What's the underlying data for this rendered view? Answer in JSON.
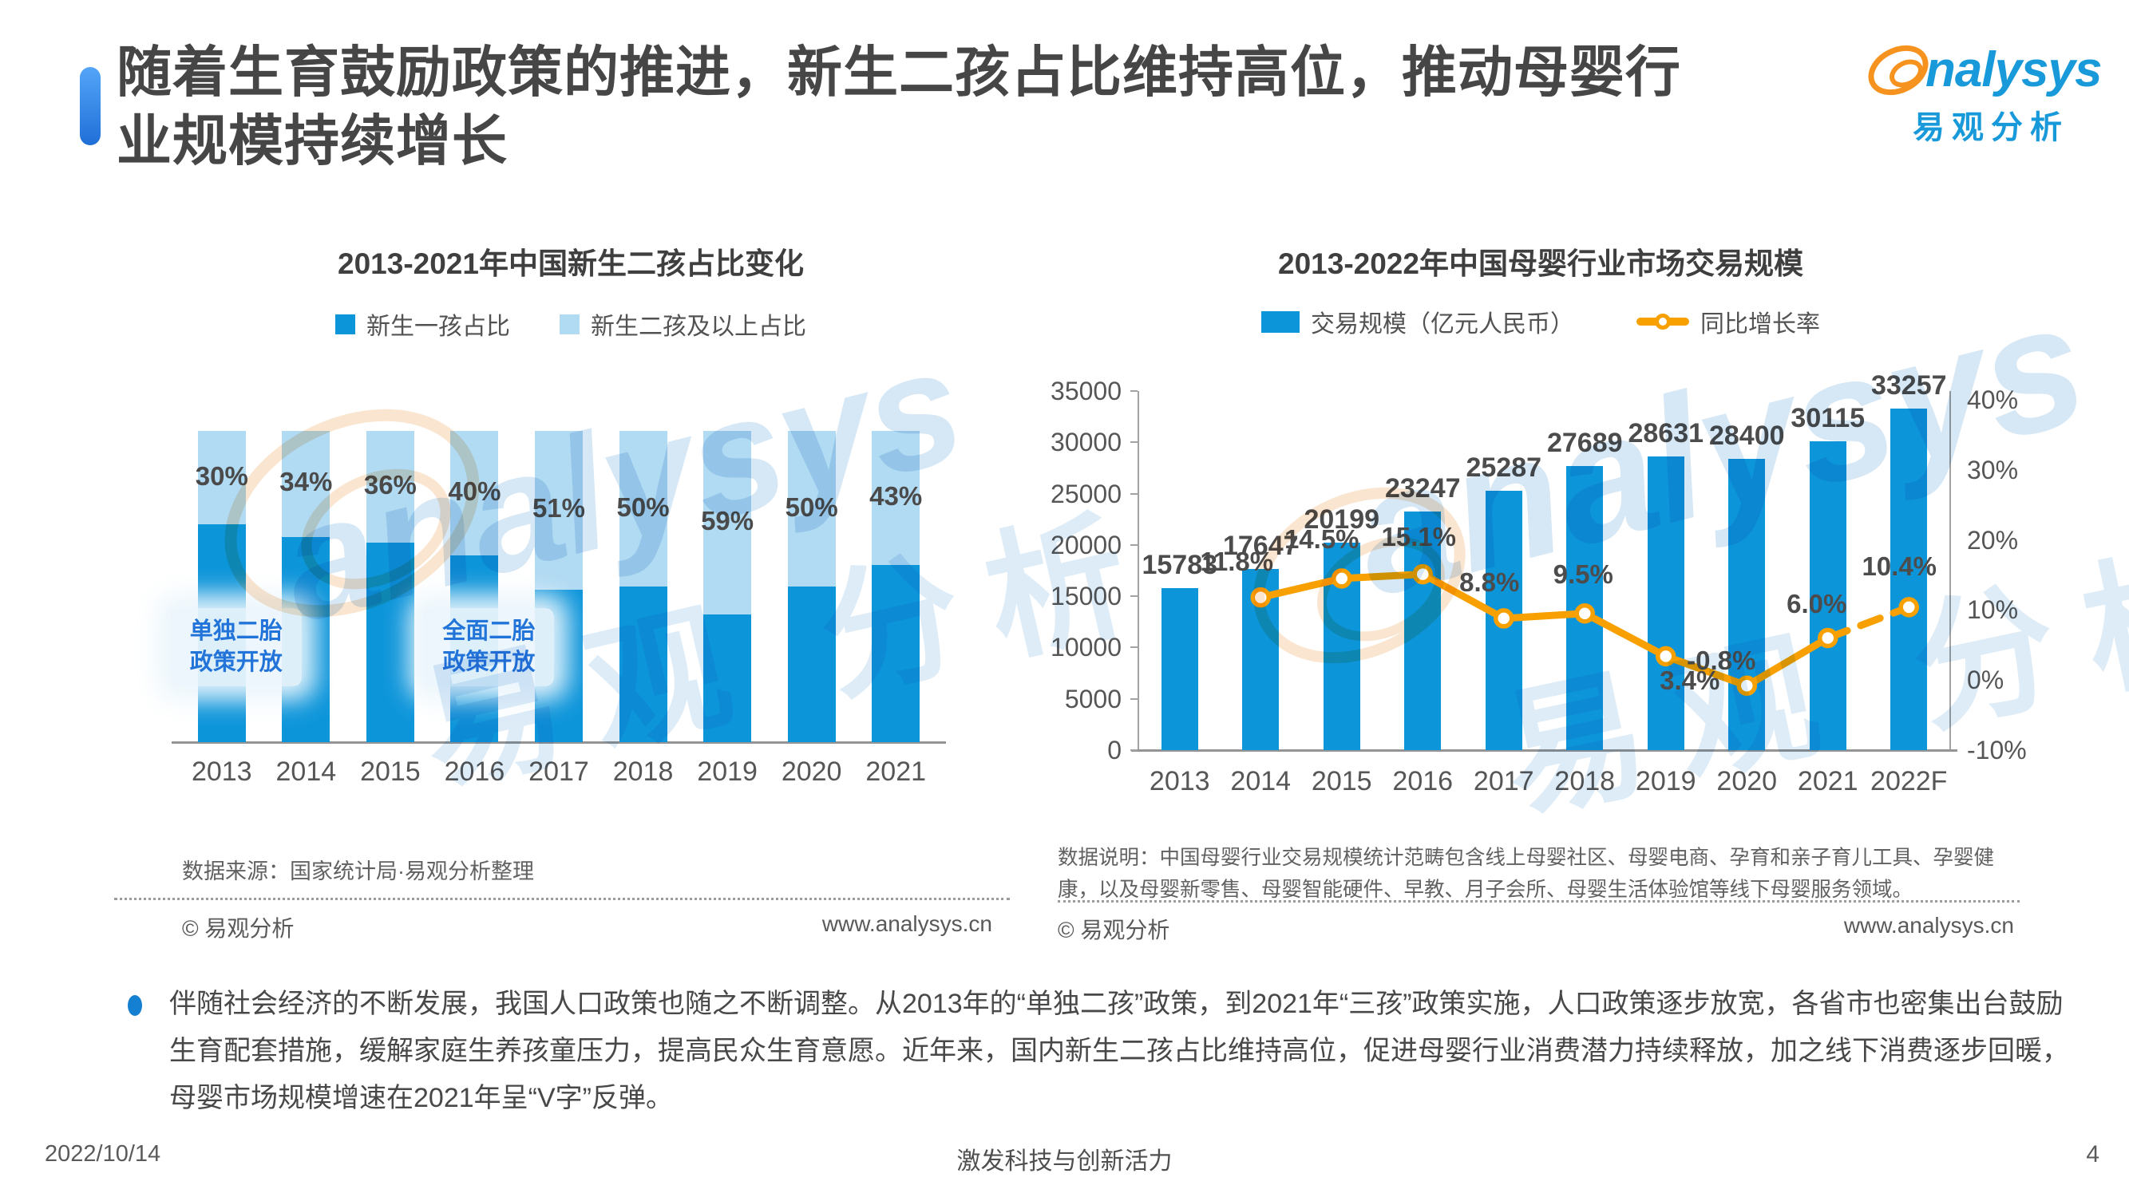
{
  "slide": {
    "title": "随着生育鼓励政策的推进，新生二孩占比维持高位，推动母婴行业规模持续增长",
    "bullet_text": "伴随社会经济的不断发展，我国人口政策也随之不断调整。从2013年的“单独二孩”政策，到2021年“三孩”政策实施，人口政策逐步放宽，各省市也密集出台鼓励生育配套措施，缓解家庭生养孩童压力，提高民众生育意愿。近年来，国内新生二孩占比维持高位，促进母婴行业消费潜力持续释放，加之线下消费逐步回暖，母婴市场规模增速在2021年呈“V字”反弹。",
    "footer": {
      "date": "2022/10/14",
      "slogan": "激发科技与创新活力",
      "page": "4"
    }
  },
  "logo": {
    "en_rest": "nalysys",
    "cn": "易观分析"
  },
  "watermark": {
    "en": "analysys",
    "cn": "易观 分析"
  },
  "left_panel": {
    "source": "数据来源：国家统计局·易观分析整理",
    "copyright": "© 易观分析",
    "website": "www.analysys.cn"
  },
  "right_panel": {
    "note": "数据说明：中国母婴行业交易规模统计范畴包含线上母婴社区、母婴电商、孕育和亲子育儿工具、孕婴健康，以及母婴新零售、母婴智能硬件、早教、月子会所、母婴生活体验馆等线下母婴服务领域。",
    "copyright": "© 易观分析",
    "website": "www.analysys.cn"
  },
  "colors": {
    "bar_blue": "#0d95da",
    "bar_light_blue": "#b1daf3",
    "line_orange": "#f7a000",
    "accent_blue": "#1f6fd8",
    "logo_blue": "#1899d9",
    "logo_orange": "#f6921e"
  },
  "chart_data": [
    {
      "type": "bar",
      "subtype": "stacked-100pct",
      "title": "2013-2021年中国新生二孩占比变化",
      "categories": [
        "2013",
        "2014",
        "2015",
        "2016",
        "2017",
        "2018",
        "2019",
        "2020",
        "2021"
      ],
      "series": [
        {
          "name": "新生一孩占比",
          "color": "#0d95da",
          "values": [
            70,
            66,
            64,
            60,
            49,
            50,
            41,
            50,
            57
          ]
        },
        {
          "name": "新生二孩及以上占比",
          "color": "#b1daf3",
          "values": [
            30,
            34,
            36,
            40,
            51,
            50,
            59,
            50,
            43
          ]
        }
      ],
      "data_labels": [
        "30%",
        "34%",
        "36%",
        "40%",
        "51%",
        "50%",
        "59%",
        "50%",
        "43%"
      ],
      "annotations": [
        {
          "lines": [
            "单独二胎",
            "政策开放"
          ],
          "category_index": 0
        },
        {
          "lines": [
            "全面二胎",
            "政策开放"
          ],
          "category_index": 3
        }
      ],
      "ylim": [
        0,
        100
      ],
      "grid": false,
      "legend_position": "top"
    },
    {
      "type": "bar+line",
      "title": "2013-2022年中国母婴行业市场交易规模",
      "categories": [
        "2013",
        "2014",
        "2015",
        "2016",
        "2017",
        "2018",
        "2019",
        "2020",
        "2021",
        "2022F"
      ],
      "bar_series": {
        "name": "交易规模（亿元人民币）",
        "color": "#0d95da",
        "values": [
          15783,
          17647,
          20199,
          23247,
          25287,
          27689,
          28631,
          28400,
          30115,
          33257
        ]
      },
      "line_series": {
        "name": "同比增长率",
        "color": "#f7a000",
        "values": [
          null,
          11.8,
          14.5,
          15.1,
          8.8,
          9.5,
          3.4,
          -0.8,
          6.0,
          10.4
        ],
        "labels": [
          null,
          "11.8%",
          "14.5%",
          "15.1%",
          "8.8%",
          "9.5%",
          "3.4%",
          "-0.8%",
          "6.0%",
          "10.4%"
        ],
        "dashed_segment_start_index": 8
      },
      "y_left": {
        "min": 0,
        "max": 35000,
        "tick_step": 5000,
        "ticks": [
          "35000",
          "30000",
          "25000",
          "20000",
          "15000",
          "10000",
          "5000",
          "0"
        ]
      },
      "y_right": {
        "min": -10,
        "max": 41.25,
        "ticks": [
          {
            "v": 40,
            "label": "40%"
          },
          {
            "v": 30,
            "label": "30%"
          },
          {
            "v": 20,
            "label": "20%"
          },
          {
            "v": 10,
            "label": "10%"
          },
          {
            "v": 0,
            "label": "0%"
          },
          {
            "v": -10,
            "label": "-10%"
          }
        ]
      },
      "grid": false,
      "legend_position": "top"
    }
  ]
}
